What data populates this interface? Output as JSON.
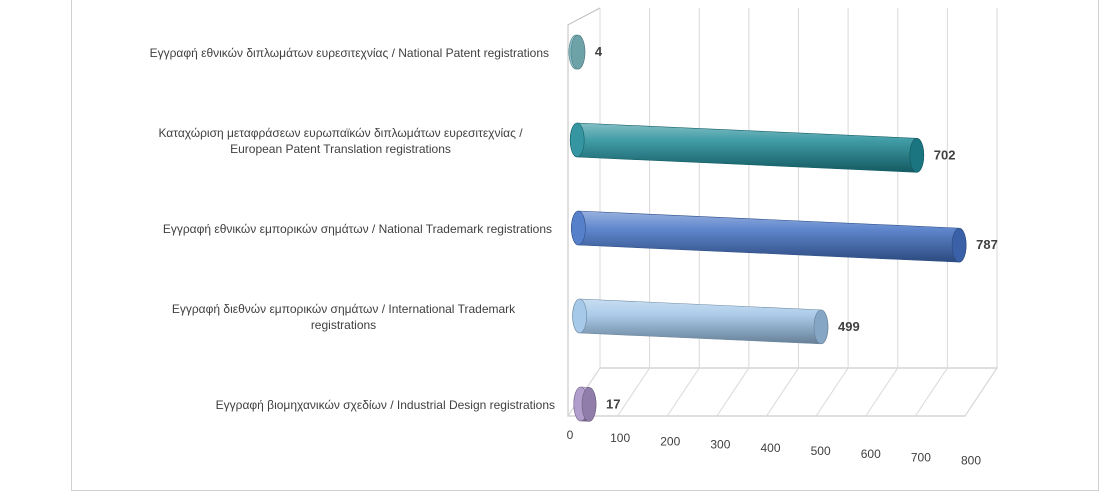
{
  "chart_data": {
    "type": "bar",
    "orientation": "horizontal",
    "style": "3d-cylinder",
    "categories": [
      [
        "Εγγραφή  εθνικών διπλωμάτων ευρεσιτεχνίας / National Patent registrations"
      ],
      [
        "Καταχώριση μεταφράσεων ευρωπαϊκών διπλωμάτων ευρεσιτεχνίας /",
        "European Patent Translation registrations"
      ],
      [
        "Εγγραφή  εθνικών εμπορικών σημάτων / National Trademark registrations"
      ],
      [
        "Εγγραφή  διεθνών εμπορικών σημάτων / International Trademark",
        "registrations"
      ],
      [
        "Εγγραφή  βιομηχανικών σχεδίων / Industrial Design registrations"
      ]
    ],
    "values": [
      4,
      702,
      787,
      499,
      17
    ],
    "value_labels": [
      "4",
      "702",
      "787",
      "499",
      "17"
    ],
    "colors": [
      "#7fbfc6",
      "#1f8a96",
      "#4472c4",
      "#9dc3e6",
      "#a993c7"
    ],
    "xlim": [
      0,
      800
    ],
    "ticks": [
      "0",
      "100",
      "200",
      "300",
      "400",
      "500",
      "600",
      "700",
      "800"
    ],
    "grid": true,
    "legend": "none"
  }
}
